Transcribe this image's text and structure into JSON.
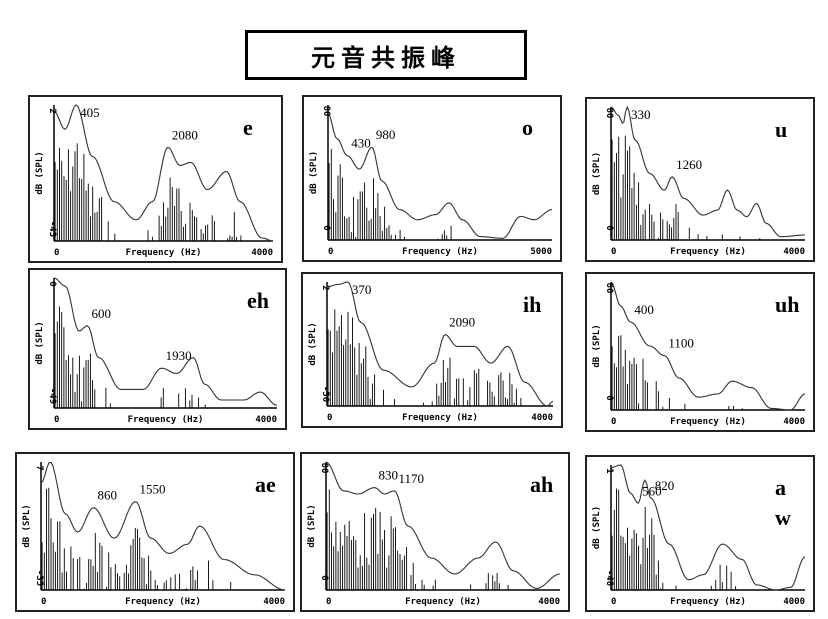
{
  "title": "元音共振峰",
  "chart_data": [
    {
      "type": "line",
      "vowel": "e",
      "vowel_lines": [
        "e"
      ],
      "xlabel": "Frequency (Hz)",
      "ylabel": "dB (SPL)",
      "xlim": [
        0,
        4000
      ],
      "ylim": [
        -43,
        2
      ],
      "xticks": [
        "0",
        "4000"
      ],
      "yticks": [
        "2",
        "-43"
      ],
      "formants": [
        {
          "hz": 405,
          "label": "405"
        },
        {
          "hz": 2080,
          "label": "2080"
        }
      ],
      "envelope": [
        [
          0,
          0
        ],
        [
          200,
          -6
        ],
        [
          405,
          2
        ],
        [
          700,
          -15
        ],
        [
          1100,
          -30
        ],
        [
          1500,
          -36
        ],
        [
          1800,
          -30
        ],
        [
          2080,
          -12
        ],
        [
          2300,
          -18
        ],
        [
          2500,
          -17
        ],
        [
          2800,
          -26
        ],
        [
          3150,
          -20
        ],
        [
          3400,
          -30
        ],
        [
          3800,
          -42
        ],
        [
          4000,
          -43
        ]
      ]
    },
    {
      "type": "line",
      "vowel": "o",
      "vowel_lines": [
        "o"
      ],
      "xlabel": "Frequency (Hz)",
      "ylabel": "dB (SPL)",
      "xlim": [
        0,
        5000
      ],
      "ylim": [
        0,
        80
      ],
      "xticks": [
        "0",
        "5000"
      ],
      "yticks": [
        "80",
        "0"
      ],
      "formants": [
        {
          "hz": 430,
          "label": "430"
        },
        {
          "hz": 980,
          "label": "980"
        }
      ],
      "envelope": [
        [
          0,
          75
        ],
        [
          200,
          60
        ],
        [
          430,
          50
        ],
        [
          700,
          42
        ],
        [
          980,
          55
        ],
        [
          1200,
          35
        ],
        [
          1600,
          18
        ],
        [
          2000,
          12
        ],
        [
          2400,
          15
        ],
        [
          2700,
          22
        ],
        [
          3000,
          12
        ],
        [
          3400,
          2
        ],
        [
          3900,
          1
        ],
        [
          4300,
          14
        ],
        [
          4600,
          12
        ],
        [
          5000,
          18
        ]
      ]
    },
    {
      "type": "line",
      "vowel": "u",
      "vowel_lines": [
        "u"
      ],
      "xlabel": "Frequency (Hz)",
      "ylabel": "dB (SPL)",
      "xlim": [
        0,
        4000
      ],
      "ylim": [
        0,
        80
      ],
      "xticks": [
        "0",
        "4000"
      ],
      "yticks": [
        "80",
        "0"
      ],
      "formants": [
        {
          "hz": 330,
          "label": "330"
        },
        {
          "hz": 1260,
          "label": "1260"
        }
      ],
      "envelope": [
        [
          0,
          80
        ],
        [
          150,
          75
        ],
        [
          250,
          70
        ],
        [
          330,
          80
        ],
        [
          500,
          60
        ],
        [
          800,
          40
        ],
        [
          1100,
          30
        ],
        [
          1260,
          38
        ],
        [
          1500,
          25
        ],
        [
          1900,
          15
        ],
        [
          2200,
          18
        ],
        [
          2400,
          30
        ],
        [
          2600,
          18
        ],
        [
          2800,
          14
        ],
        [
          3000,
          22
        ],
        [
          3200,
          10
        ],
        [
          3500,
          2
        ],
        [
          4000,
          3
        ]
      ]
    },
    {
      "type": "line",
      "vowel": "eh",
      "vowel_lines": [
        "eh"
      ],
      "xlabel": "Frequency (Hz)",
      "ylabel": "dB (SPL)",
      "xlim": [
        0,
        4000
      ],
      "ylim": [
        -49,
        0
      ],
      "xticks": [
        "0",
        "4000"
      ],
      "yticks": [
        "0",
        "-49"
      ],
      "formants": [
        {
          "hz": 600,
          "label": "600"
        },
        {
          "hz": 1930,
          "label": "1930"
        }
      ],
      "envelope": [
        [
          0,
          0
        ],
        [
          200,
          -3
        ],
        [
          450,
          -20
        ],
        [
          600,
          -18
        ],
        [
          800,
          -30
        ],
        [
          1200,
          -42
        ],
        [
          1600,
          -42
        ],
        [
          1930,
          -34
        ],
        [
          2200,
          -36
        ],
        [
          2500,
          -30
        ],
        [
          2700,
          -40
        ],
        [
          3000,
          -46
        ],
        [
          3400,
          -46
        ],
        [
          3700,
          -43
        ],
        [
          4000,
          -48
        ]
      ]
    },
    {
      "type": "line",
      "vowel": "ih",
      "vowel_lines": [
        "ih"
      ],
      "xlabel": "Frequency (Hz)",
      "ylabel": "dB (SPL)",
      "xlim": [
        0,
        4000
      ],
      "ylim": [
        -50,
        2
      ],
      "xticks": [
        "0",
        "4000"
      ],
      "yticks": [
        "2",
        "-50"
      ],
      "formants": [
        {
          "hz": 370,
          "label": "370"
        },
        {
          "hz": 2090,
          "label": "2090"
        }
      ],
      "envelope": [
        [
          0,
          0
        ],
        [
          200,
          1
        ],
        [
          370,
          2
        ],
        [
          600,
          -15
        ],
        [
          1000,
          -35
        ],
        [
          1500,
          -42
        ],
        [
          1900,
          -32
        ],
        [
          2090,
          -20
        ],
        [
          2300,
          -25
        ],
        [
          2600,
          -25
        ],
        [
          2900,
          -32
        ],
        [
          3200,
          -25
        ],
        [
          3500,
          -40
        ],
        [
          3900,
          -50
        ],
        [
          4000,
          -48
        ]
      ]
    },
    {
      "type": "line",
      "vowel": "uh",
      "vowel_lines": [
        "uh"
      ],
      "xlabel": "Frequency (Hz)",
      "ylabel": "dB (SPL)",
      "xlim": [
        0,
        4000
      ],
      "ylim": [
        0,
        80
      ],
      "xticks": [
        "0",
        "4000"
      ],
      "yticks": [
        "80",
        "0"
      ],
      "formants": [
        {
          "hz": 400,
          "label": "400"
        },
        {
          "hz": 1100,
          "label": "1100"
        }
      ],
      "envelope": [
        [
          0,
          80
        ],
        [
          200,
          65
        ],
        [
          400,
          55
        ],
        [
          800,
          40
        ],
        [
          1100,
          34
        ],
        [
          1400,
          20
        ],
        [
          1800,
          8
        ],
        [
          2200,
          10
        ],
        [
          2500,
          18
        ],
        [
          2900,
          14
        ],
        [
          3300,
          1
        ],
        [
          3700,
          0
        ],
        [
          4000,
          10
        ]
      ]
    },
    {
      "type": "line",
      "vowel": "ae",
      "vowel_lines": [
        "ae"
      ],
      "xlabel": "Frequency (Hz)",
      "ylabel": "dB (SPL)",
      "xlim": [
        0,
        4000
      ],
      "ylim": [
        -35,
        7
      ],
      "xticks": [
        "0",
        "4000"
      ],
      "yticks": [
        "7",
        "-35"
      ],
      "formants": [
        {
          "hz": 860,
          "label": "860"
        },
        {
          "hz": 1550,
          "label": "1550"
        }
      ],
      "envelope": [
        [
          0,
          0
        ],
        [
          150,
          7
        ],
        [
          400,
          -10
        ],
        [
          600,
          -16
        ],
        [
          860,
          -8
        ],
        [
          1200,
          -18
        ],
        [
          1550,
          -6
        ],
        [
          1800,
          -18
        ],
        [
          2100,
          -23
        ],
        [
          2400,
          -20
        ],
        [
          2600,
          -14
        ],
        [
          3000,
          -25
        ],
        [
          3500,
          -30
        ],
        [
          4000,
          -35
        ]
      ]
    },
    {
      "type": "line",
      "vowel": "ah",
      "vowel_lines": [
        "ah"
      ],
      "xlabel": "Frequency (Hz)",
      "ylabel": "dB (SPL)",
      "xlim": [
        0,
        4000
      ],
      "ylim": [
        0,
        80
      ],
      "xticks": [
        "0",
        "4000"
      ],
      "yticks": [
        "80",
        "0"
      ],
      "formants": [
        {
          "hz": 830,
          "label": "830"
        },
        {
          "hz": 1170,
          "label": "1170"
        }
      ],
      "envelope": [
        [
          0,
          80
        ],
        [
          300,
          62
        ],
        [
          550,
          60
        ],
        [
          830,
          64
        ],
        [
          1000,
          60
        ],
        [
          1170,
          62
        ],
        [
          1400,
          40
        ],
        [
          1800,
          20
        ],
        [
          2200,
          10
        ],
        [
          2600,
          20
        ],
        [
          2900,
          30
        ],
        [
          3200,
          12
        ],
        [
          3600,
          1
        ],
        [
          4000,
          10
        ]
      ]
    },
    {
      "type": "line",
      "vowel": "aw",
      "vowel_lines": [
        "a",
        "w"
      ],
      "xlabel": "Frequency (Hz)",
      "ylabel": "dB (SPL)",
      "xlim": [
        0,
        4000
      ],
      "ylim": [
        -48,
        1
      ],
      "xticks": [
        "0",
        "4000"
      ],
      "yticks": [
        "1",
        "-48"
      ],
      "formants": [
        {
          "hz": 560,
          "label": "560"
        },
        {
          "hz": 820,
          "label": "820"
        }
      ],
      "envelope": [
        [
          0,
          0
        ],
        [
          200,
          1
        ],
        [
          400,
          -10
        ],
        [
          560,
          -14
        ],
        [
          700,
          -5
        ],
        [
          820,
          -12
        ],
        [
          1200,
          -30
        ],
        [
          1600,
          -44
        ],
        [
          1900,
          -42
        ],
        [
          2300,
          -30
        ],
        [
          2700,
          -36
        ],
        [
          3000,
          -46
        ],
        [
          3400,
          -48
        ],
        [
          3700,
          -47
        ],
        [
          4000,
          -35
        ]
      ]
    }
  ]
}
